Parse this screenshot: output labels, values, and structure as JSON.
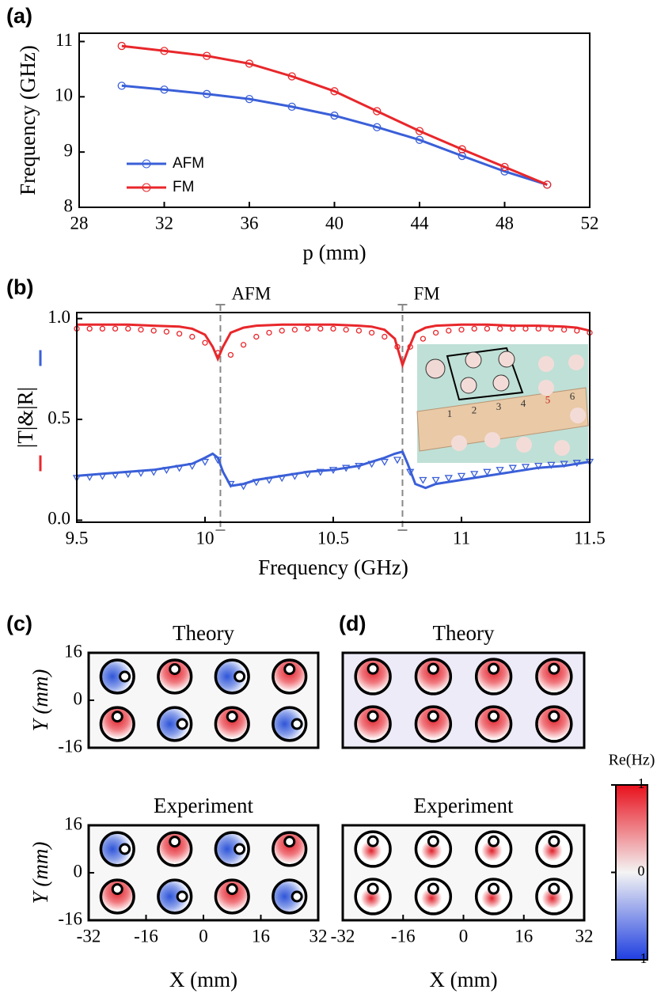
{
  "chart_data": [
    {
      "type": "line",
      "panel": "(a)",
      "ylabel": "Frequency (GHz)",
      "xlabel": "p (mm)",
      "x": [
        30,
        32,
        34,
        36,
        38,
        40,
        42,
        44,
        46,
        48,
        50
      ],
      "xlim": [
        28,
        52
      ],
      "xticks": [
        28,
        32,
        36,
        40,
        44,
        48,
        52
      ],
      "ylim": [
        8,
        11.15
      ],
      "yticks": [
        8,
        9,
        10,
        11
      ],
      "legend": "lower left",
      "series": [
        {
          "name": "AFM",
          "color": "#3a5fd8",
          "marker": "circle",
          "line": true,
          "values": [
            10.2,
            10.13,
            10.05,
            9.96,
            9.82,
            9.66,
            9.45,
            9.22,
            8.93,
            8.65,
            8.41
          ]
        },
        {
          "name": "FM",
          "color": "#e8272b",
          "marker": "circle",
          "line": true,
          "values": [
            10.92,
            10.83,
            10.74,
            10.6,
            10.37,
            10.1,
            9.74,
            9.38,
            9.05,
            8.73,
            8.41
          ]
        }
      ]
    },
    {
      "type": "line",
      "panel": "(b)",
      "ylabel": "|T|&|R|",
      "xlabel": "Frequency (GHz)",
      "xlim": [
        9.5,
        11.5
      ],
      "xticks": [
        9.5,
        10,
        10.5,
        11,
        11.5
      ],
      "ylim": [
        -0.01,
        1.03
      ],
      "yticks": [
        {
          "value": 0,
          "label": "0.0"
        },
        0.5,
        {
          "value": 1,
          "label": "1.0"
        }
      ],
      "annotations": [
        {
          "text": "AFM",
          "x": 10.06
        },
        {
          "text": "FM",
          "x": 10.77
        }
      ],
      "inset_ruler": [
        1,
        2,
        3,
        4,
        5,
        6
      ],
      "series": [
        {
          "color": "#e8272b",
          "marker": "none",
          "line": true,
          "x": [
            9.5,
            9.6,
            9.7,
            9.8,
            9.9,
            9.95,
            10.0,
            10.03,
            10.05,
            10.07,
            10.1,
            10.15,
            10.2,
            10.3,
            10.4,
            10.5,
            10.6,
            10.65,
            10.7,
            10.74,
            10.77,
            10.79,
            10.82,
            10.86,
            10.9,
            11.0,
            11.1,
            11.2,
            11.3,
            11.4,
            11.45,
            11.5
          ],
          "values": [
            0.97,
            0.97,
            0.97,
            0.965,
            0.96,
            0.95,
            0.92,
            0.86,
            0.8,
            0.86,
            0.93,
            0.955,
            0.965,
            0.97,
            0.97,
            0.97,
            0.965,
            0.96,
            0.945,
            0.9,
            0.77,
            0.84,
            0.93,
            0.955,
            0.965,
            0.97,
            0.97,
            0.965,
            0.965,
            0.96,
            0.955,
            0.94
          ]
        },
        {
          "color": "#3a5fd8",
          "marker": "none",
          "line": true,
          "x": [
            9.5,
            9.6,
            9.7,
            9.8,
            9.9,
            9.95,
            10.0,
            10.03,
            10.05,
            10.07,
            10.1,
            10.15,
            10.2,
            10.3,
            10.4,
            10.5,
            10.6,
            10.65,
            10.7,
            10.74,
            10.77,
            10.79,
            10.82,
            10.86,
            10.9,
            11.0,
            11.1,
            11.2,
            11.3,
            11.4,
            11.45,
            11.5
          ],
          "values": [
            0.22,
            0.23,
            0.24,
            0.25,
            0.27,
            0.28,
            0.31,
            0.33,
            0.31,
            0.24,
            0.17,
            0.18,
            0.2,
            0.22,
            0.24,
            0.25,
            0.27,
            0.29,
            0.31,
            0.33,
            0.34,
            0.28,
            0.18,
            0.16,
            0.18,
            0.2,
            0.22,
            0.24,
            0.26,
            0.27,
            0.28,
            0.29
          ]
        },
        {
          "color": "#e8272b",
          "marker": "circle",
          "line": false,
          "x": [
            9.5,
            9.55,
            9.6,
            9.65,
            9.7,
            9.75,
            9.8,
            9.85,
            9.9,
            9.95,
            10.0,
            10.05,
            10.1,
            10.15,
            10.2,
            10.25,
            10.3,
            10.35,
            10.4,
            10.45,
            10.5,
            10.55,
            10.6,
            10.65,
            10.7,
            10.75,
            10.8,
            10.85,
            10.9,
            10.95,
            11.0,
            11.05,
            11.1,
            11.15,
            11.2,
            11.25,
            11.3,
            11.35,
            11.4,
            11.45,
            11.5
          ],
          "values": [
            0.95,
            0.95,
            0.95,
            0.95,
            0.95,
            0.945,
            0.94,
            0.935,
            0.925,
            0.91,
            0.88,
            0.83,
            0.82,
            0.87,
            0.91,
            0.93,
            0.94,
            0.945,
            0.95,
            0.95,
            0.95,
            0.945,
            0.94,
            0.93,
            0.91,
            0.86,
            0.86,
            0.9,
            0.93,
            0.94,
            0.945,
            0.95,
            0.95,
            0.95,
            0.95,
            0.95,
            0.95,
            0.95,
            0.945,
            0.94,
            0.93
          ]
        },
        {
          "color": "#3a5fd8",
          "marker": "triangle",
          "line": false,
          "x": [
            9.5,
            9.55,
            9.6,
            9.65,
            9.7,
            9.75,
            9.8,
            9.85,
            9.9,
            9.95,
            10.0,
            10.05,
            10.1,
            10.15,
            10.2,
            10.25,
            10.3,
            10.35,
            10.4,
            10.45,
            10.5,
            10.55,
            10.6,
            10.65,
            10.7,
            10.75,
            10.8,
            10.85,
            10.9,
            10.95,
            11.0,
            11.05,
            11.1,
            11.15,
            11.2,
            11.25,
            11.3,
            11.35,
            11.4,
            11.45,
            11.5
          ],
          "values": [
            0.21,
            0.215,
            0.22,
            0.225,
            0.23,
            0.235,
            0.24,
            0.25,
            0.26,
            0.27,
            0.29,
            0.3,
            0.18,
            0.17,
            0.19,
            0.2,
            0.21,
            0.22,
            0.23,
            0.24,
            0.25,
            0.26,
            0.27,
            0.28,
            0.29,
            0.3,
            0.24,
            0.2,
            0.2,
            0.21,
            0.22,
            0.23,
            0.24,
            0.25,
            0.26,
            0.265,
            0.27,
            0.275,
            0.28,
            0.285,
            0.29
          ]
        }
      ]
    },
    {
      "type": "field",
      "panel": "(c)",
      "title": "Theory",
      "ylabel": "Y (mm)",
      "xlim": [
        -32,
        32
      ],
      "ylim": [
        -16,
        16
      ],
      "yticks": [
        -16,
        0,
        16
      ]
    },
    {
      "type": "field",
      "title": "Experiment",
      "ylabel": "Y (mm)",
      "xlabel": "X (mm)",
      "xlim": [
        -32,
        32
      ],
      "ylim": [
        -16,
        16
      ],
      "xticks": [
        -32,
        -16,
        0,
        16,
        32
      ],
      "yticks": [
        -16,
        0,
        16
      ]
    },
    {
      "type": "field",
      "panel": "(d)",
      "title": "Theory",
      "xlim": [
        -32,
        32
      ],
      "ylim": [
        -16,
        16
      ]
    },
    {
      "type": "field",
      "title": "Experiment",
      "xlabel": "X (mm)",
      "xlim": [
        -32,
        32
      ],
      "ylim": [
        -16,
        16
      ],
      "xticks": [
        -32,
        -16,
        0,
        16,
        32
      ]
    },
    {
      "type": "colorbar",
      "label": "Re(Hz)",
      "ylim": [
        -1,
        1
      ],
      "yticks": [
        -1,
        0,
        1
      ]
    }
  ]
}
